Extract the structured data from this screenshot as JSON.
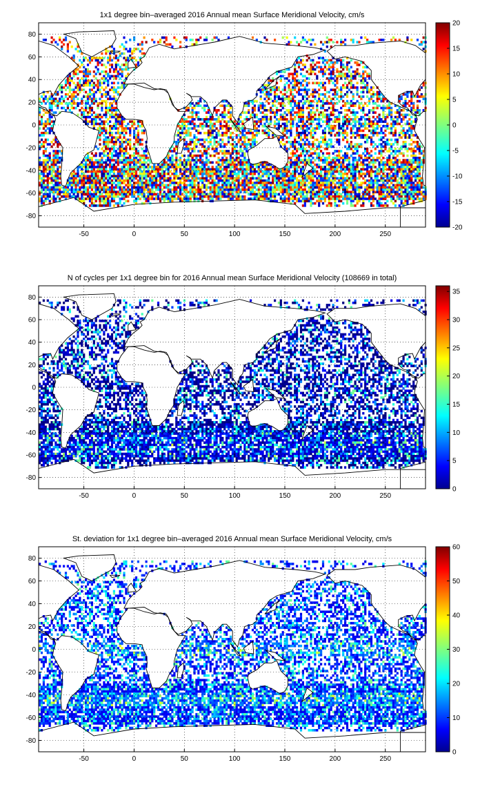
{
  "chart_data": [
    {
      "type": "heatmap",
      "title": "1x1 degree bin–averaged 2016 Annual mean Surface Meridional Velocity, cm/s",
      "xlabel": "",
      "ylabel": "",
      "xlim": [
        -95,
        290
      ],
      "ylim": [
        -90,
        90
      ],
      "xticks": [
        -50,
        0,
        50,
        100,
        150,
        200,
        250
      ],
      "yticks": [
        80,
        60,
        40,
        20,
        0,
        -20,
        -40,
        -60,
        -80
      ],
      "grid": true,
      "colormap": "jet",
      "colorbar": {
        "range": [
          -20,
          20
        ],
        "ticks": [
          20,
          15,
          10,
          5,
          0,
          -5,
          -10,
          -15,
          -20
        ]
      },
      "field": "diverging"
    },
    {
      "type": "heatmap",
      "title": "N of cycles per 1x1 degree bin for 2016 Annual mean Surface Meridional Velocity (108669 in total)",
      "xlabel": "",
      "ylabel": "",
      "xlim": [
        -95,
        290
      ],
      "ylim": [
        -90,
        90
      ],
      "xticks": [
        -50,
        0,
        50,
        100,
        150,
        200,
        250
      ],
      "yticks": [
        80,
        60,
        40,
        20,
        0,
        -20,
        -40,
        -60,
        -80
      ],
      "grid": true,
      "colormap": "jet",
      "colorbar": {
        "range": [
          0,
          36
        ],
        "ticks": [
          35,
          30,
          25,
          20,
          15,
          10,
          5,
          0
        ]
      },
      "field": "count"
    },
    {
      "type": "heatmap",
      "title": "St. deviation for 1x1 degree bin–averaged 2016 Annual mean Surface Meridional Velocity, cm/s",
      "xlabel": "",
      "ylabel": "",
      "xlim": [
        -95,
        290
      ],
      "ylim": [
        -90,
        90
      ],
      "xticks": [
        -50,
        0,
        50,
        100,
        150,
        200,
        250
      ],
      "yticks": [
        80,
        60,
        40,
        20,
        0,
        -20,
        -40,
        -60,
        -80
      ],
      "grid": true,
      "colormap": "jet",
      "colorbar": {
        "range": [
          0,
          60
        ],
        "ticks": [
          60,
          50,
          40,
          30,
          20,
          10,
          0
        ]
      },
      "field": "stdev"
    }
  ]
}
